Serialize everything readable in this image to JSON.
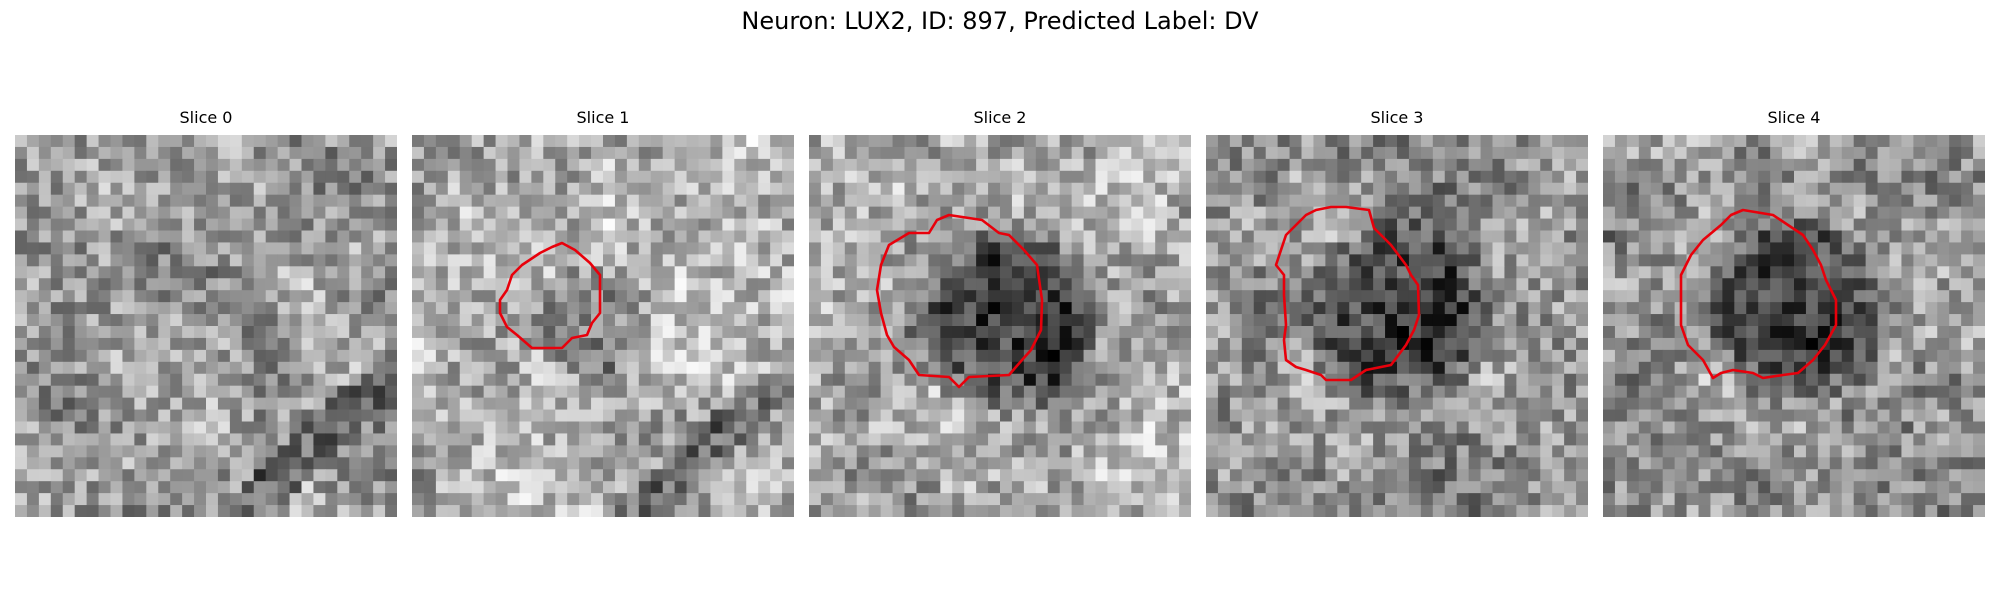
{
  "figure": {
    "title": "Neuron: LUX2, ID: 897, Predicted Label: DV",
    "contour_color": "#e8000b",
    "colormap": "grayscale"
  },
  "panels": [
    {
      "title": "Slice 0",
      "has_contour": false
    },
    {
      "title": "Slice 1",
      "has_contour": true
    },
    {
      "title": "Slice 2",
      "has_contour": true
    },
    {
      "title": "Slice 3",
      "has_contour": true
    },
    {
      "title": "Slice 4",
      "has_contour": true
    }
  ]
}
